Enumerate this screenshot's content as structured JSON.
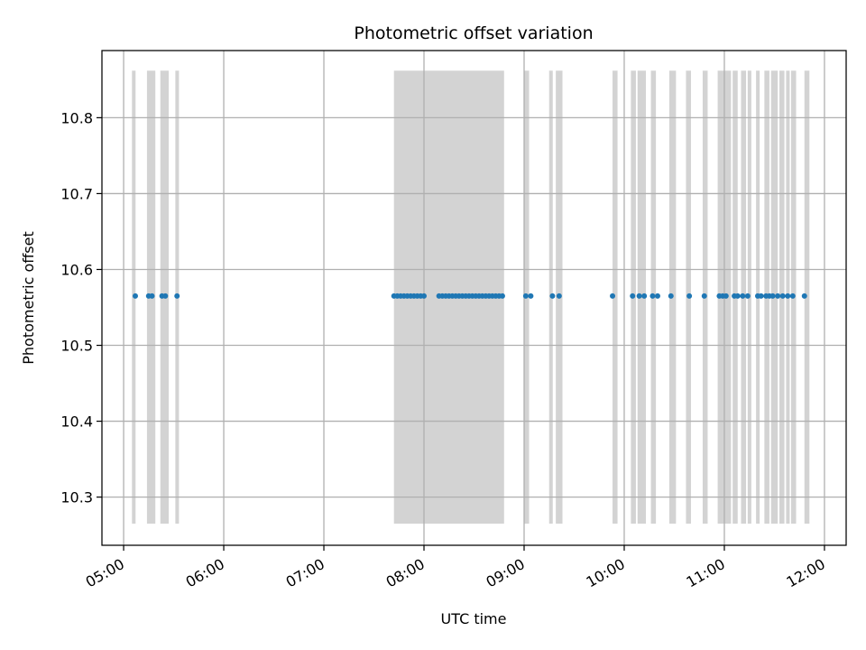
{
  "chart_data": {
    "type": "scatter",
    "title": "Photometric offset variation",
    "xlabel": "UTC time",
    "ylabel": "Photometric offset",
    "x_unit": "UTC",
    "xlim": [
      "04:47",
      "12:13"
    ],
    "ylim": [
      10.2365,
      10.8885
    ],
    "xticks": [
      "05:00",
      "06:00",
      "07:00",
      "08:00",
      "09:00",
      "10:00",
      "11:00",
      "12:00"
    ],
    "yticks": [
      10.3,
      10.4,
      10.5,
      10.6,
      10.7,
      10.8
    ],
    "ytick_labels": [
      "10.3",
      "10.4",
      "10.5",
      "10.6",
      "10.7",
      "10.8"
    ],
    "grid": true,
    "colors": {
      "points": "#1f77b4",
      "bands": "#d3d3d3",
      "grid": "#b0b0b0"
    },
    "band_range": [
      10.265,
      10.862
    ],
    "bands": [
      [
        "05:05",
        "05:07"
      ],
      [
        "05:14",
        "05:19"
      ],
      [
        "05:22",
        "05:27"
      ],
      [
        "05:31",
        "05:33"
      ],
      [
        "07:42",
        "08:48"
      ],
      [
        "09:00",
        "09:03"
      ],
      [
        "09:15",
        "09:17"
      ],
      [
        "09:19",
        "09:23"
      ],
      [
        "09:53",
        "09:56"
      ],
      [
        "10:04",
        "10:07"
      ],
      [
        "10:08",
        "10:13"
      ],
      [
        "10:16",
        "10:19"
      ],
      [
        "10:27",
        "10:31"
      ],
      [
        "10:37",
        "10:40"
      ],
      [
        "10:47",
        "10:50"
      ],
      [
        "10:56",
        "11:04"
      ],
      [
        "11:05",
        "11:08"
      ],
      [
        "11:10",
        "11:13"
      ],
      [
        "11:14",
        "11:16"
      ],
      [
        "11:19",
        "11:21"
      ],
      [
        "11:24",
        "11:27"
      ],
      [
        "11:28",
        "11:32"
      ],
      [
        "11:33",
        "11:36"
      ],
      [
        "11:37",
        "11:38"
      ],
      [
        "11:40",
        "11:43"
      ],
      [
        "11:48",
        "11:51"
      ]
    ],
    "series": [
      {
        "y": 10.565,
        "x": [
          "05:07",
          "05:15",
          "05:17",
          "05:23",
          "05:25",
          "05:32",
          "07:42",
          "07:44",
          "07:46",
          "07:48",
          "07:50",
          "07:52",
          "07:54",
          "07:56",
          "07:58",
          "08:00",
          "08:09",
          "08:11",
          "08:13",
          "08:15",
          "08:17",
          "08:19",
          "08:21",
          "08:23",
          "08:25",
          "08:27",
          "08:29",
          "08:31",
          "08:33",
          "08:35",
          "08:37",
          "08:39",
          "08:41",
          "08:43",
          "08:45",
          "08:47",
          "09:01",
          "09:04",
          "09:17",
          "09:21",
          "09:53",
          "10:05",
          "10:09",
          "10:12",
          "10:17",
          "10:20",
          "10:28",
          "10:39",
          "10:48",
          "10:57",
          "10:59",
          "11:01",
          "11:06",
          "11:08",
          "11:11",
          "11:14",
          "11:20",
          "11:22",
          "11:25",
          "11:27",
          "11:29",
          "11:32",
          "11:35",
          "11:38",
          "11:41",
          "11:48"
        ]
      }
    ]
  }
}
